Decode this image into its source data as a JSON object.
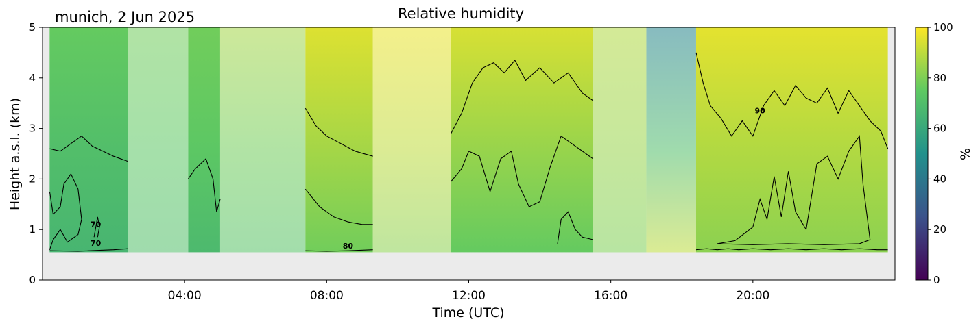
{
  "figure": {
    "title": "Relative humidity",
    "site_date": "munich, 2 Jun 2025"
  },
  "chart_data": {
    "type": "heatmap",
    "title": "Relative humidity",
    "annotation": "munich, 2 Jun 2025",
    "xlabel": "Time (UTC)",
    "ylabel": "Height a.s.l. (km)",
    "xlim_hours": [
      0,
      24
    ],
    "ylim_km": [
      0,
      5
    ],
    "xticks": [
      {
        "hour": 4,
        "label": "04:00"
      },
      {
        "hour": 8,
        "label": "08:00"
      },
      {
        "hour": 12,
        "label": "12:00"
      },
      {
        "hour": 16,
        "label": "16:00"
      },
      {
        "hour": 20,
        "label": "20:00"
      }
    ],
    "yticks": [
      0,
      1,
      2,
      3,
      4,
      5
    ],
    "colorbar": {
      "label": "%",
      "range": [
        0,
        100
      ],
      "ticks": [
        0,
        20,
        40,
        60,
        80,
        100
      ],
      "colormap": [
        "#440154",
        "#3b528b",
        "#21918c",
        "#5ec962",
        "#fde725"
      ]
    },
    "data_floor_km": 0.55,
    "missing_color": "#ebebeb",
    "masked_intervals_hours": [
      [
        2.4,
        4.1
      ],
      [
        5.0,
        7.4
      ],
      [
        9.3,
        11.5
      ],
      [
        15.5,
        18.4
      ]
    ],
    "columns": [
      {
        "t0": 0.2,
        "t1": 2.4,
        "rh_low": 66,
        "rh_mid": 70,
        "rh_high": 76
      },
      {
        "t0": 2.4,
        "t1": 4.1,
        "rh_low": 70,
        "rh_mid": 74,
        "rh_high": 78
      },
      {
        "t0": 4.1,
        "t1": 5.0,
        "rh_low": 68,
        "rh_mid": 74,
        "rh_high": 78
      },
      {
        "t0": 5.0,
        "t1": 7.4,
        "rh_low": 72,
        "rh_mid": 78,
        "rh_high": 86
      },
      {
        "t0": 7.4,
        "t1": 9.3,
        "rh_low": 78,
        "rh_mid": 86,
        "rh_high": 95
      },
      {
        "t0": 9.3,
        "t1": 11.5,
        "rh_low": 82,
        "rh_mid": 90,
        "rh_high": 97
      },
      {
        "t0": 11.5,
        "t1": 15.5,
        "rh_low": 76,
        "rh_mid": 84,
        "rh_high": 94
      },
      {
        "t0": 15.5,
        "t1": 17.0,
        "rh_low": 80,
        "rh_mid": 84,
        "rh_high": 88
      },
      {
        "t0": 17.0,
        "t1": 18.4,
        "rh_low": 90,
        "rh_mid": 70,
        "rh_high": 45
      },
      {
        "t0": 18.4,
        "t1": 23.8,
        "rh_low": 82,
        "rh_mid": 88,
        "rh_high": 96
      }
    ],
    "contours": [
      {
        "level": 70,
        "label": "70",
        "label_hour": 1.5,
        "label_km": 0.68,
        "points": [
          [
            0.2,
            1.75
          ],
          [
            0.3,
            1.3
          ],
          [
            0.5,
            1.45
          ],
          [
            0.6,
            1.9
          ],
          [
            0.8,
            2.1
          ],
          [
            1.0,
            1.8
          ],
          [
            1.1,
            1.2
          ],
          [
            1.0,
            0.9
          ],
          [
            0.7,
            0.75
          ],
          [
            0.5,
            1.0
          ],
          [
            0.3,
            0.8
          ],
          [
            0.2,
            0.6
          ]
        ]
      },
      {
        "level": 70,
        "label": "70",
        "label_hour": 1.5,
        "label_km": 1.05,
        "points": [
          [
            1.45,
            0.85
          ],
          [
            1.5,
            1.05
          ],
          [
            1.55,
            1.25
          ],
          [
            1.6,
            1.05
          ],
          [
            1.55,
            0.85
          ]
        ]
      },
      {
        "level": 80,
        "label": "",
        "label_hour": null,
        "label_km": null,
        "points": [
          [
            0.2,
            0.58
          ],
          [
            1.0,
            0.57
          ],
          [
            2.0,
            0.6
          ],
          [
            2.4,
            0.62
          ]
        ]
      },
      {
        "level": 80,
        "label": "80",
        "label_hour": 8.6,
        "label_km": 0.62,
        "points": [
          [
            7.4,
            0.58
          ],
          [
            8.0,
            0.57
          ],
          [
            8.6,
            0.58
          ],
          [
            9.3,
            0.6
          ]
        ]
      },
      {
        "level": 80,
        "label": "",
        "label_hour": null,
        "label_km": null,
        "points": [
          [
            0.2,
            2.6
          ],
          [
            0.5,
            2.55
          ],
          [
            0.8,
            2.7
          ],
          [
            1.1,
            2.85
          ],
          [
            1.4,
            2.65
          ],
          [
            1.7,
            2.55
          ],
          [
            2.0,
            2.45
          ],
          [
            2.4,
            2.35
          ]
        ]
      },
      {
        "level": 80,
        "label": "",
        "label_hour": null,
        "label_km": null,
        "points": [
          [
            4.1,
            2.0
          ],
          [
            4.3,
            2.2
          ],
          [
            4.6,
            2.4
          ],
          [
            4.8,
            2.0
          ],
          [
            4.9,
            1.35
          ],
          [
            5.0,
            1.6
          ]
        ]
      },
      {
        "level": 90,
        "label": "",
        "label_hour": null,
        "label_km": null,
        "points": [
          [
            7.4,
            3.4
          ],
          [
            7.7,
            3.05
          ],
          [
            8.0,
            2.85
          ],
          [
            8.4,
            2.7
          ],
          [
            8.8,
            2.55
          ],
          [
            9.3,
            2.45
          ]
        ]
      },
      {
        "level": 80,
        "label": "",
        "label_hour": null,
        "label_km": null,
        "points": [
          [
            7.4,
            1.8
          ],
          [
            7.8,
            1.45
          ],
          [
            8.2,
            1.25
          ],
          [
            8.6,
            1.15
          ],
          [
            9.0,
            1.1
          ],
          [
            9.3,
            1.1
          ]
        ]
      },
      {
        "level": 90,
        "label": "",
        "label_hour": null,
        "label_km": null,
        "points": [
          [
            11.5,
            2.9
          ],
          [
            11.8,
            3.3
          ],
          [
            12.1,
            3.9
          ],
          [
            12.4,
            4.2
          ],
          [
            12.7,
            4.3
          ],
          [
            13.0,
            4.1
          ],
          [
            13.3,
            4.35
          ],
          [
            13.6,
            3.95
          ],
          [
            14.0,
            4.2
          ],
          [
            14.4,
            3.9
          ],
          [
            14.8,
            4.1
          ],
          [
            15.2,
            3.7
          ],
          [
            15.5,
            3.55
          ]
        ]
      },
      {
        "level": 80,
        "label": "",
        "label_hour": null,
        "label_km": null,
        "points": [
          [
            11.5,
            1.95
          ],
          [
            11.8,
            2.2
          ],
          [
            12.0,
            2.55
          ],
          [
            12.3,
            2.45
          ],
          [
            12.6,
            1.75
          ],
          [
            12.9,
            2.4
          ],
          [
            13.2,
            2.55
          ],
          [
            13.4,
            1.9
          ],
          [
            13.7,
            1.45
          ],
          [
            14.0,
            1.55
          ],
          [
            14.3,
            2.25
          ],
          [
            14.6,
            2.85
          ],
          [
            15.0,
            2.65
          ],
          [
            15.3,
            2.5
          ],
          [
            15.5,
            2.4
          ]
        ]
      },
      {
        "level": 70,
        "label": "",
        "label_hour": null,
        "label_km": null,
        "points": [
          [
            14.5,
            0.72
          ],
          [
            14.6,
            1.2
          ],
          [
            14.8,
            1.35
          ],
          [
            15.0,
            1.0
          ],
          [
            15.2,
            0.85
          ],
          [
            15.5,
            0.8
          ]
        ]
      },
      {
        "level": 90,
        "label": "90",
        "label_hour": 20.2,
        "label_km": 3.3,
        "points": [
          [
            18.4,
            4.5
          ],
          [
            18.6,
            3.9
          ],
          [
            18.8,
            3.45
          ],
          [
            19.1,
            3.2
          ],
          [
            19.4,
            2.85
          ],
          [
            19.7,
            3.15
          ],
          [
            20.0,
            2.85
          ],
          [
            20.3,
            3.45
          ],
          [
            20.6,
            3.75
          ],
          [
            20.9,
            3.45
          ],
          [
            21.2,
            3.85
          ],
          [
            21.5,
            3.6
          ],
          [
            21.8,
            3.5
          ],
          [
            22.1,
            3.8
          ],
          [
            22.4,
            3.3
          ],
          [
            22.7,
            3.75
          ],
          [
            23.0,
            3.45
          ],
          [
            23.3,
            3.15
          ],
          [
            23.6,
            2.95
          ],
          [
            23.8,
            2.6
          ]
        ]
      },
      {
        "level": 80,
        "label": "",
        "label_hour": null,
        "label_km": null,
        "points": [
          [
            18.4,
            0.6
          ],
          [
            18.7,
            0.62
          ],
          [
            19.0,
            0.6
          ],
          [
            19.3,
            0.62
          ],
          [
            19.6,
            0.6
          ],
          [
            20.0,
            0.62
          ],
          [
            20.5,
            0.6
          ],
          [
            21.0,
            0.62
          ],
          [
            21.5,
            0.6
          ],
          [
            22.0,
            0.62
          ],
          [
            22.5,
            0.6
          ],
          [
            23.0,
            0.62
          ],
          [
            23.5,
            0.6
          ],
          [
            23.8,
            0.6
          ]
        ]
      },
      {
        "level": 80,
        "label": "",
        "label_hour": null,
        "label_km": null,
        "points": [
          [
            19.0,
            0.72
          ],
          [
            19.5,
            0.78
          ],
          [
            20.0,
            1.05
          ],
          [
            20.2,
            1.6
          ],
          [
            20.4,
            1.2
          ],
          [
            20.6,
            2.05
          ],
          [
            20.8,
            1.25
          ],
          [
            21.0,
            2.15
          ],
          [
            21.2,
            1.35
          ],
          [
            21.5,
            1.0
          ],
          [
            21.8,
            2.3
          ],
          [
            22.1,
            2.45
          ],
          [
            22.4,
            2.0
          ],
          [
            22.7,
            2.55
          ],
          [
            23.0,
            2.85
          ],
          [
            23.1,
            1.9
          ],
          [
            23.3,
            0.8
          ],
          [
            23.0,
            0.72
          ],
          [
            22.0,
            0.7
          ],
          [
            21.0,
            0.72
          ],
          [
            20.0,
            0.7
          ],
          [
            19.0,
            0.72
          ]
        ]
      }
    ]
  }
}
